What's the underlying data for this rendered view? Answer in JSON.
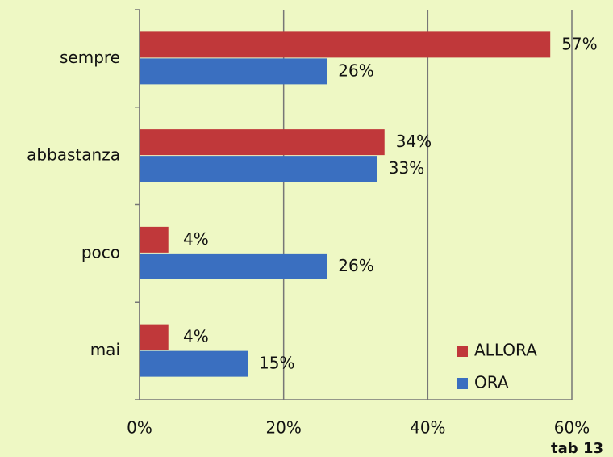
{
  "chart_data": {
    "type": "bar",
    "orientation": "horizontal",
    "categories": [
      "sempre",
      "abbastanza",
      "poco",
      "mai"
    ],
    "series": [
      {
        "name": "ALLORA",
        "color": "#c0383a",
        "values": [
          57,
          34,
          4,
          4
        ],
        "value_labels": [
          "57%",
          "34%",
          "4%",
          "4%"
        ]
      },
      {
        "name": "ORA",
        "color": "#3a6fc0",
        "values": [
          26,
          33,
          26,
          15
        ],
        "value_labels": [
          "26%",
          "33%",
          "26%",
          "15%"
        ]
      }
    ],
    "xlim": [
      0,
      60
    ],
    "xticks": [
      {
        "value": 0,
        "label": "0%"
      },
      {
        "value": 20,
        "label": "20%"
      },
      {
        "value": 40,
        "label": "40%"
      },
      {
        "value": 60,
        "label": "60%"
      }
    ],
    "grid": true,
    "legend": "lower right",
    "annotation": "tab 13"
  }
}
